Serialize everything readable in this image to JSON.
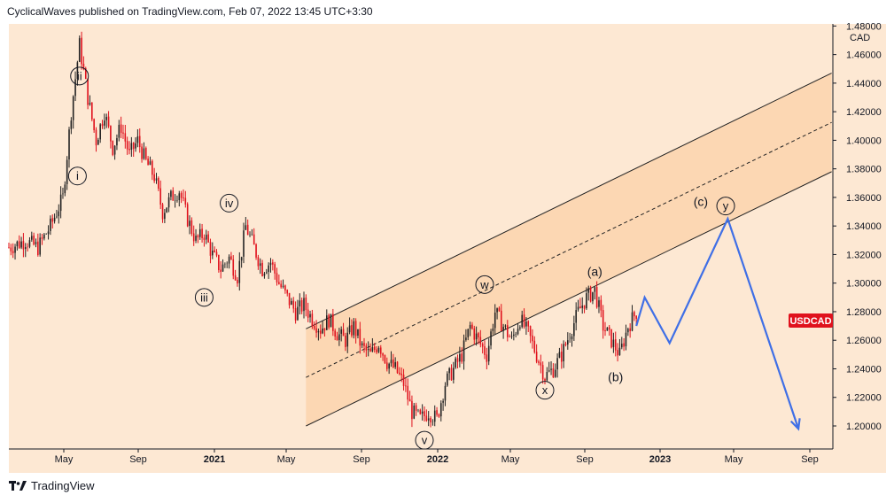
{
  "header": {
    "publisher_line": "CyclicalWaves published on TradingView.com, Feb 07, 2022 13:45 UTC+3:30"
  },
  "footer": {
    "brand": "TradingView"
  },
  "colors": {
    "background": "#fde8d3",
    "channel_fill": "#fbd2a8",
    "candle_down": "#e0121d",
    "candle_up": "#222222",
    "projection": "#3f6fe6",
    "badge": "#e0121d"
  },
  "chart_data": {
    "type": "candlestick",
    "symbol_badge": "USDCAD",
    "currency_label": "CAD",
    "y_ticks": [
      "1.48000",
      "1.46000",
      "1.44000",
      "1.42000",
      "1.40000",
      "1.38000",
      "1.36000",
      "1.34000",
      "1.32000",
      "1.30000",
      "1.28000",
      "1.26000",
      "1.24000",
      "1.22000",
      "1.20000"
    ],
    "x_ticks": [
      "May",
      "Sep",
      "2021",
      "May",
      "Sep",
      "2022",
      "May",
      "Sep",
      "2023",
      "May",
      "Sep"
    ],
    "ylim": [
      1.19,
      1.48
    ],
    "price_path": [
      [
        0,
        1.325
      ],
      [
        8,
        1.33
      ],
      [
        14,
        1.325
      ],
      [
        20,
        1.34
      ],
      [
        26,
        1.36
      ],
      [
        30,
        1.42
      ],
      [
        34,
        1.467
      ],
      [
        38,
        1.43
      ],
      [
        42,
        1.4
      ],
      [
        46,
        1.42
      ],
      [
        50,
        1.395
      ],
      [
        54,
        1.41
      ],
      [
        58,
        1.39
      ],
      [
        62,
        1.4
      ],
      [
        66,
        1.385
      ],
      [
        70,
        1.375
      ],
      [
        74,
        1.35
      ],
      [
        78,
        1.36
      ],
      [
        82,
        1.365
      ],
      [
        86,
        1.345
      ],
      [
        90,
        1.33
      ],
      [
        94,
        1.335
      ],
      [
        98,
        1.32
      ],
      [
        102,
        1.31
      ],
      [
        106,
        1.318
      ],
      [
        110,
        1.305
      ],
      [
        114,
        1.34
      ],
      [
        118,
        1.325
      ],
      [
        122,
        1.31
      ],
      [
        126,
        1.315
      ],
      [
        130,
        1.3
      ],
      [
        134,
        1.29
      ],
      [
        138,
        1.28
      ],
      [
        142,
        1.285
      ],
      [
        146,
        1.275
      ],
      [
        150,
        1.268
      ],
      [
        154,
        1.275
      ],
      [
        158,
        1.265
      ],
      [
        162,
        1.26
      ],
      [
        166,
        1.27
      ],
      [
        170,
        1.255
      ],
      [
        174,
        1.25
      ],
      [
        178,
        1.258
      ],
      [
        182,
        1.245
      ],
      [
        186,
        1.24
      ],
      [
        190,
        1.23
      ],
      [
        194,
        1.21
      ],
      [
        198,
        1.205
      ],
      [
        202,
        1.21
      ],
      [
        206,
        1.205
      ],
      [
        210,
        1.23
      ],
      [
        214,
        1.24
      ],
      [
        218,
        1.25
      ],
      [
        222,
        1.27
      ],
      [
        226,
        1.26
      ],
      [
        230,
        1.25
      ],
      [
        234,
        1.28
      ],
      [
        238,
        1.27
      ],
      [
        242,
        1.26
      ],
      [
        246,
        1.275
      ],
      [
        250,
        1.265
      ],
      [
        254,
        1.25
      ],
      [
        258,
        1.235
      ],
      [
        262,
        1.24
      ],
      [
        266,
        1.25
      ],
      [
        270,
        1.265
      ],
      [
        274,
        1.28
      ],
      [
        278,
        1.29
      ],
      [
        282,
        1.295
      ],
      [
        286,
        1.27
      ],
      [
        290,
        1.26
      ],
      [
        294,
        1.25
      ],
      [
        298,
        1.27
      ],
      [
        302,
        1.28
      ]
    ],
    "projection": {
      "date_index": [
        302,
        306,
        318,
        346,
        380
      ],
      "values": [
        1.27,
        1.29,
        1.258,
        1.345,
        1.198
      ]
    },
    "wave_labels": [
      {
        "text": "ii",
        "date_index": 34,
        "value": 1.445,
        "circled": true
      },
      {
        "text": "i",
        "date_index": 33,
        "value": 1.375,
        "circled": true
      },
      {
        "text": "iv",
        "date_index": 106,
        "value": 1.356,
        "circled": true
      },
      {
        "text": "iii",
        "date_index": 94,
        "value": 1.29,
        "circled": true
      },
      {
        "text": "v",
        "date_index": 200,
        "value": 1.19,
        "circled": true
      },
      {
        "text": "w",
        "date_index": 229,
        "value": 1.299,
        "circled": true
      },
      {
        "text": "x",
        "date_index": 258,
        "value": 1.225,
        "circled": true
      },
      {
        "text": "y",
        "date_index": 345,
        "value": 1.354,
        "circled": true
      },
      {
        "text": "(a)",
        "date_index": 282,
        "value": 1.308,
        "circled": false
      },
      {
        "text": "(b)",
        "date_index": 292,
        "value": 1.234,
        "circled": false
      },
      {
        "text": "(c)",
        "date_index": 333,
        "value": 1.357,
        "circled": false
      }
    ]
  }
}
